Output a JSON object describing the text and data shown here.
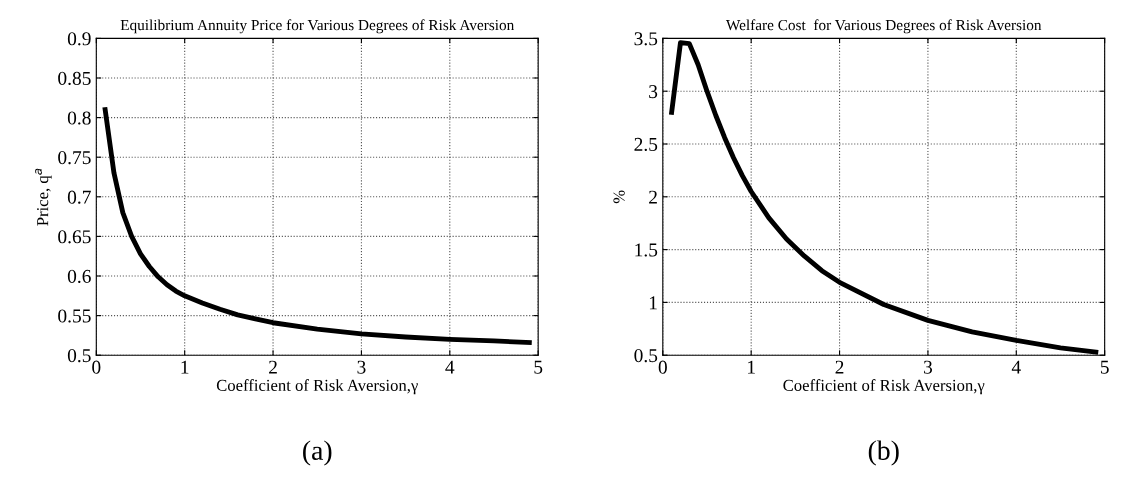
{
  "chart_data": [
    {
      "type": "line",
      "title": "Equilibrium Annuity Price for Various Degrees of Risk Aversion",
      "xlabel": "Coefficient of Risk Aversion,γ",
      "ylabel": "Price, q$^{a}$",
      "annotations": [
        "(a)"
      ],
      "x": [
        0.1,
        0.2,
        0.3,
        0.4,
        0.5,
        0.6,
        0.7,
        0.8,
        0.9,
        1.0,
        1.2,
        1.4,
        1.6,
        1.8,
        2.0,
        2.5,
        3.0,
        3.5,
        4.0,
        4.5,
        4.9
      ],
      "series": [
        {
          "color": "#000000",
          "values": [
            0.81,
            0.73,
            0.68,
            0.65,
            0.628,
            0.612,
            0.599,
            0.589,
            0.581,
            0.575,
            0.566,
            0.558,
            0.551,
            0.546,
            0.541,
            0.533,
            0.527,
            0.523,
            0.52,
            0.518,
            0.516
          ]
        }
      ],
      "xlim": [
        0,
        5
      ],
      "xticks": [
        0,
        1,
        2,
        3,
        4,
        5
      ],
      "ylim": [
        0.5,
        0.9
      ],
      "yticks": [
        0.5,
        0.55,
        0.6,
        0.65,
        0.7,
        0.75,
        0.8,
        0.85,
        0.9
      ],
      "grid": true,
      "line_style": "solid",
      "legend": false
    },
    {
      "type": "line",
      "title": "Welfare Cost  for Various Degrees of Risk Aversion",
      "xlabel": "Coefficient of Risk Aversion,γ",
      "ylabel": "%",
      "annotations": [
        "(b)"
      ],
      "x": [
        0.1,
        0.2,
        0.3,
        0.4,
        0.5,
        0.6,
        0.7,
        0.8,
        0.9,
        1.0,
        1.2,
        1.4,
        1.6,
        1.8,
        2.0,
        2.5,
        3.0,
        3.5,
        4.0,
        4.5,
        4.9
      ],
      "series": [
        {
          "color": "#000000",
          "values": [
            2.8,
            3.46,
            3.45,
            3.25,
            3.0,
            2.77,
            2.56,
            2.37,
            2.2,
            2.05,
            1.8,
            1.6,
            1.44,
            1.3,
            1.19,
            0.98,
            0.83,
            0.72,
            0.64,
            0.57,
            0.53
          ]
        }
      ],
      "xlim": [
        0,
        5
      ],
      "xticks": [
        0,
        1,
        2,
        3,
        4,
        5
      ],
      "ylim": [
        0.5,
        3.5
      ],
      "yticks": [
        0.5,
        1,
        1.5,
        2,
        2.5,
        3,
        3.5
      ],
      "grid": true,
      "line_style": "solid",
      "legend": false
    }
  ]
}
